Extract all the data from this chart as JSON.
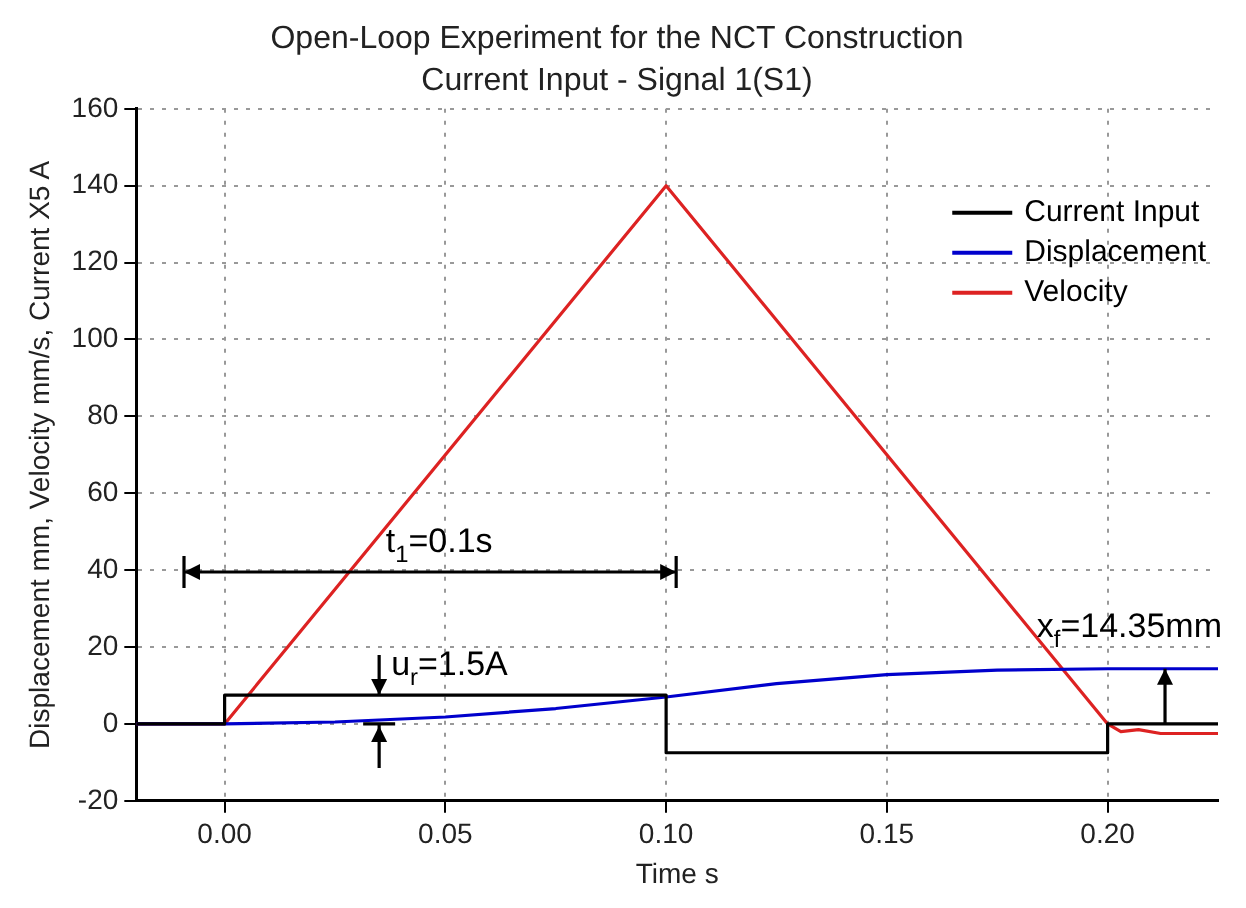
{
  "chart_data": {
    "type": "line",
    "title": "Open-Loop Experiment for the NCT Construction",
    "subtitle": "Current Input - Signal 1(S1)",
    "xlabel": "Time s",
    "ylabel": "Displacement mm, Velocity mm/s, Current X5 A",
    "series": [
      {
        "name": "Current Input",
        "type": "step",
        "color": "#000000",
        "x": [
          -0.02,
          0,
          0.1,
          0.2,
          0.225
        ],
        "values": [
          0,
          7.5,
          -7.5,
          0,
          0
        ]
      },
      {
        "name": "Displacement",
        "color": "#0000cc",
        "x": [
          -0.02,
          0,
          0.025,
          0.05,
          0.075,
          0.1,
          0.125,
          0.15,
          0.175,
          0.2,
          0.225
        ],
        "values": [
          0,
          0,
          0.5,
          1.8,
          4,
          7,
          10.5,
          12.8,
          14,
          14.35,
          14.35
        ]
      },
      {
        "name": "Velocity",
        "color": "#dd2222",
        "x": [
          -0.02,
          0,
          0.1,
          0.2,
          0.203,
          0.207,
          0.212,
          0.225
        ],
        "values": [
          0,
          0,
          140,
          0,
          -2,
          -1.5,
          -2.5,
          -2.5
        ]
      }
    ],
    "xlim": [
      -0.02,
      0.225
    ],
    "xticks": [
      {
        "value": 0,
        "label": "0.00"
      },
      {
        "value": 0.05,
        "label": "0.05"
      },
      {
        "value": 0.1,
        "label": "0.10"
      },
      {
        "value": 0.15,
        "label": "0.15"
      },
      {
        "value": 0.2,
        "label": "0.20"
      }
    ],
    "ylim": [
      -20,
      160
    ],
    "yticks": [
      -20,
      0,
      20,
      40,
      60,
      80,
      100,
      120,
      140,
      160
    ],
    "grid": true,
    "legend": "top right",
    "marker": "none",
    "line_style": "solid",
    "annotations": [
      "t$_{1}$=0.1s",
      {
        "text": "u$_{r}$=1.5A",
        "x": 0.035,
        "y": 7.5
      },
      {
        "text": "x$_{f}$=14.35mm",
        "x": 0.213,
        "y": 14.35
      }
    ]
  }
}
